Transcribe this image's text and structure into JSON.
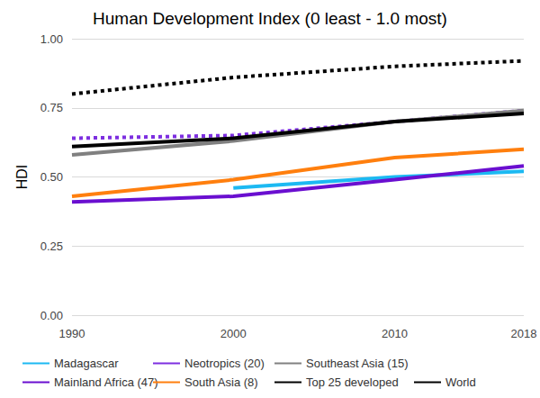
{
  "chart_data": {
    "type": "line",
    "title": "Human Development Index (0 least - 1.0 most)",
    "y_label": "HDI",
    "x": [
      1990,
      2000,
      2010,
      2018
    ],
    "xlim": [
      1990,
      2018
    ],
    "xticks": [
      1990,
      2000,
      2010,
      2018
    ],
    "ylim": [
      0,
      1
    ],
    "yticks": [
      {
        "value": 0,
        "label": "0.00"
      },
      {
        "value": 0.25,
        "label": "0.25"
      },
      {
        "value": 0.5,
        "label": "0.50"
      },
      {
        "value": 0.75,
        "label": "0.75"
      },
      {
        "value": 1,
        "label": "1.00"
      }
    ],
    "grid": true,
    "legend": "bottom",
    "series": [
      {
        "name": "Madagascar",
        "color": "#1cb9f2",
        "line_style": "solid",
        "values": [
          null,
          0.46,
          0.5,
          0.52
        ]
      },
      {
        "name": "Mainland Africa (47)",
        "color": "#6a0fd0",
        "line_style": "solid",
        "values": [
          0.41,
          0.43,
          0.49,
          0.54
        ]
      },
      {
        "name": "Neotropics (20)",
        "color": "#7d2fe0",
        "line_style": "dotted",
        "values": [
          0.64,
          0.65,
          0.7,
          0.74
        ]
      },
      {
        "name": "South Asia (8)",
        "color": "#ff7f0e",
        "line_style": "solid",
        "values": [
          0.43,
          0.49,
          0.57,
          0.6
        ]
      },
      {
        "name": "Southeast Asia (15)",
        "color": "#808080",
        "line_style": "solid",
        "values": [
          0.58,
          0.63,
          0.7,
          0.74
        ]
      },
      {
        "name": "Top 25 developed",
        "color": "#000000",
        "line_style": "dotted",
        "values": [
          0.8,
          0.86,
          0.9,
          0.92
        ]
      },
      {
        "name": "World",
        "color": "#000000",
        "line_style": "solid",
        "values": [
          0.61,
          0.64,
          0.7,
          0.73
        ]
      }
    ]
  }
}
